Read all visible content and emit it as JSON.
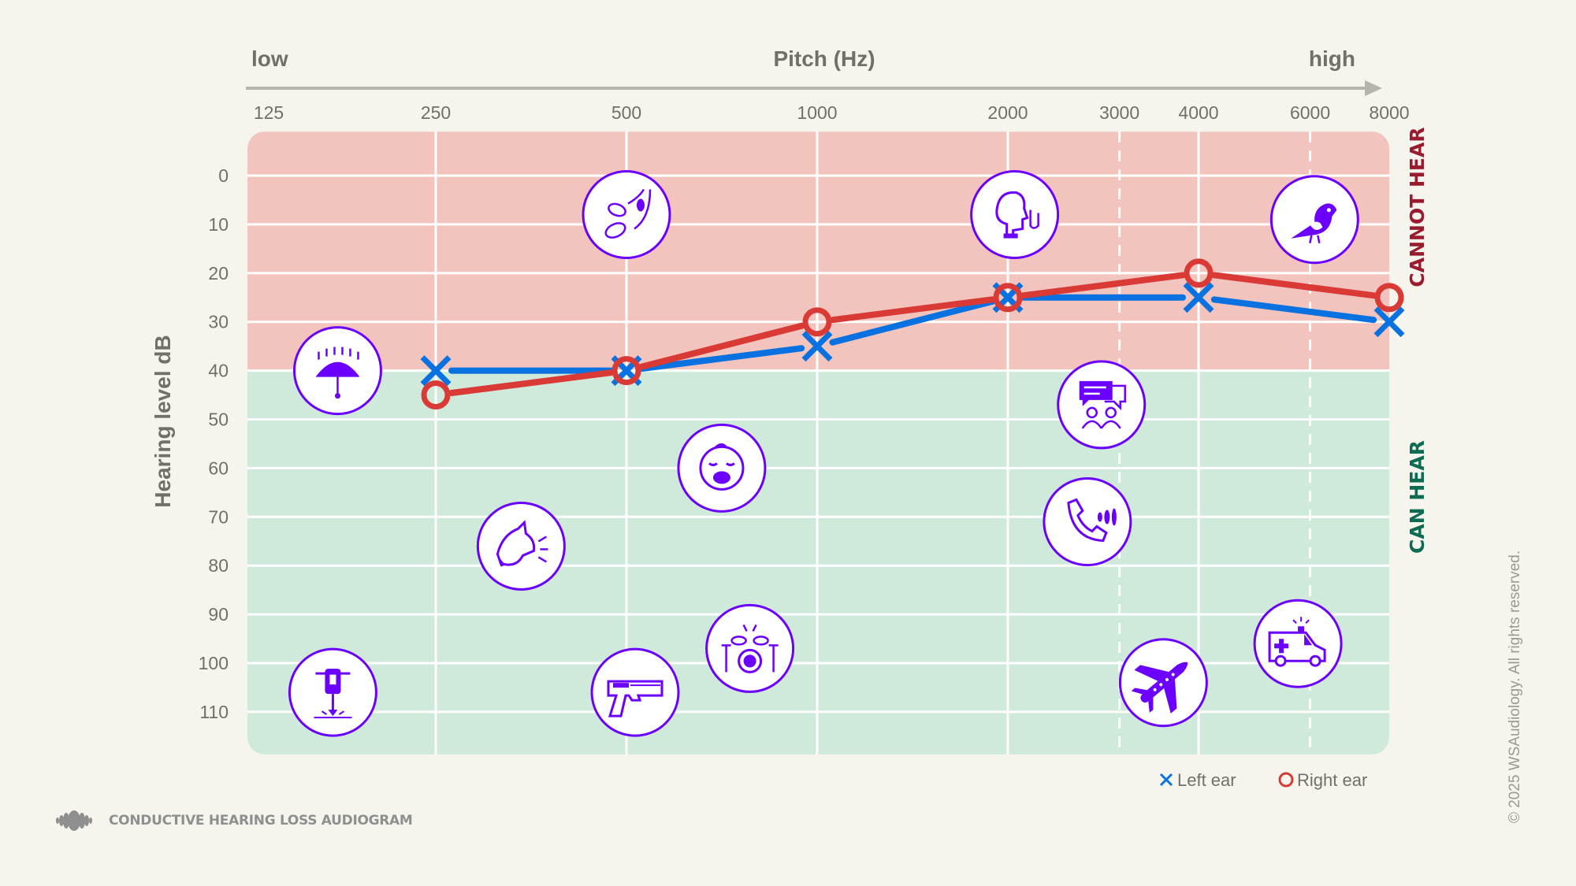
{
  "chart_data": {
    "type": "line",
    "title": "Pitch (Hz)",
    "xlabel_low": "low",
    "xlabel_high": "high",
    "ylabel": "Hearing level dB",
    "x_scale": "log2",
    "x_ticks": [
      125,
      250,
      500,
      1000,
      2000,
      3000,
      4000,
      6000,
      8000
    ],
    "x_tick_labels": [
      "125",
      "250",
      "500",
      "1000",
      "2000",
      "3000",
      "4000",
      "6000",
      "8000"
    ],
    "x_gridlines_solid": [
      250,
      500,
      1000,
      2000,
      4000
    ],
    "x_gridlines_dashed": [
      3000,
      6000
    ],
    "y_ticks": [
      0,
      10,
      20,
      30,
      40,
      50,
      60,
      70,
      80,
      90,
      100,
      110
    ],
    "y_tick_labels": [
      "0",
      "10",
      "20",
      "30",
      "40",
      "50",
      "60",
      "70",
      "80",
      "90",
      "100",
      "110"
    ],
    "y_inverted": true,
    "grid": true,
    "zones": [
      {
        "label": "CANNOT HEAR",
        "from_db": -9,
        "to_db": 40,
        "fill": "#f2c4bd",
        "label_color": "#9b1b2e"
      },
      {
        "label": "CAN HEAR",
        "from_db": 40,
        "to_db": 119,
        "fill": "#cfeadb",
        "label_color": "#0d6b52"
      }
    ],
    "series": [
      {
        "name": "Left ear",
        "marker": "x",
        "color": "#0a72e0",
        "x": [
          250,
          500,
          1000,
          2000,
          4000,
          8000
        ],
        "y": [
          40,
          40,
          35,
          25,
          25,
          30
        ]
      },
      {
        "name": "Right ear",
        "marker": "o",
        "color": "#d93a36",
        "x": [
          250,
          500,
          1000,
          2000,
          4000,
          8000
        ],
        "y": [
          45,
          40,
          30,
          25,
          20,
          25
        ]
      }
    ],
    "legend_position": "bottom-right",
    "sound_icons": [
      {
        "icon": "rain-umbrella-icon",
        "hz": 175,
        "db": 40
      },
      {
        "icon": "leaves-rustling-icon",
        "hz": 500,
        "db": 8
      },
      {
        "icon": "whisper-icon",
        "hz": 2050,
        "db": 8
      },
      {
        "icon": "bird-chirping-icon",
        "hz": 6100,
        "db": 9
      },
      {
        "icon": "jackhammer-icon",
        "hz": 172,
        "db": 106
      },
      {
        "icon": "dog-barking-icon",
        "hz": 341,
        "db": 76
      },
      {
        "icon": "baby-crying-icon",
        "hz": 707,
        "db": 60
      },
      {
        "icon": "gun-icon",
        "hz": 516,
        "db": 106
      },
      {
        "icon": "drums-icon",
        "hz": 783,
        "db": 97
      },
      {
        "icon": "conversation-icon",
        "hz": 2810,
        "db": 47
      },
      {
        "icon": "phone-ringing-icon",
        "hz": 2670,
        "db": 71
      },
      {
        "icon": "airplane-icon",
        "hz": 3520,
        "db": 104
      },
      {
        "icon": "ambulance-icon",
        "hz": 5740,
        "db": 96
      }
    ],
    "icon_color": "#6b00ff"
  },
  "footer": {
    "title": "CONDUCTIVE HEARING LOSS AUDIOGRAM",
    "logo_icon": "sound-wave-icon"
  },
  "copyright": "© 2025 WSAudiology. All rights reserved."
}
